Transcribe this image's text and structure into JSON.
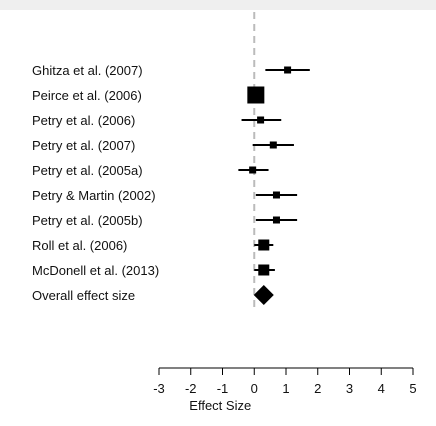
{
  "chart_data": {
    "type": "forest",
    "xlabel": "Effect Size",
    "xlim": [
      -3,
      5
    ],
    "xticks": [
      "-3",
      "-2",
      "-1",
      "0",
      "1",
      "2",
      "3",
      "4",
      "5"
    ],
    "reference_line": 0,
    "studies": [
      {
        "label": "Ghitza et al. (2007)",
        "estimate": 1.05,
        "lower": 0.35,
        "upper": 1.75,
        "weight": "small"
      },
      {
        "label": "Peirce et al. (2006)",
        "estimate": 0.05,
        "lower": -0.1,
        "upper": 0.2,
        "weight": "large"
      },
      {
        "label": "Petry et al. (2006)",
        "estimate": 0.2,
        "lower": -0.4,
        "upper": 0.85,
        "weight": "small"
      },
      {
        "label": "Petry et al. (2007)",
        "estimate": 0.6,
        "lower": -0.05,
        "upper": 1.25,
        "weight": "small"
      },
      {
        "label": "Petry et al. (2005a)",
        "estimate": -0.05,
        "lower": -0.5,
        "upper": 0.45,
        "weight": "small"
      },
      {
        "label": "Petry & Martin (2002)",
        "estimate": 0.7,
        "lower": 0.05,
        "upper": 1.35,
        "weight": "small"
      },
      {
        "label": "Petry et al. (2005b)",
        "estimate": 0.7,
        "lower": 0.05,
        "upper": 1.35,
        "weight": "small"
      },
      {
        "label": "Roll et al. (2006)",
        "estimate": 0.3,
        "lower": 0.0,
        "upper": 0.6,
        "weight": "medium"
      },
      {
        "label": "McDonell et al. (2013)",
        "estimate": 0.3,
        "lower": 0.0,
        "upper": 0.65,
        "weight": "medium"
      }
    ],
    "overall": {
      "label": "Overall effect size",
      "estimate": 0.3,
      "lower": 0.05,
      "upper": 0.55
    }
  }
}
